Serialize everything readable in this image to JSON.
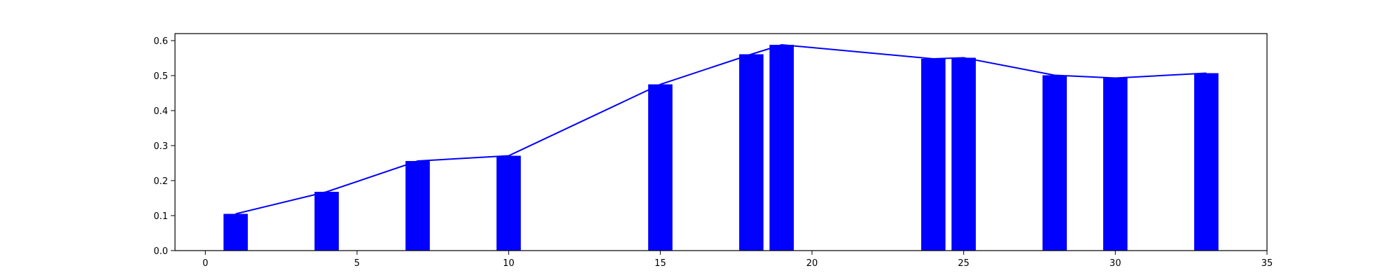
{
  "chart_data": {
    "type": "bar",
    "title": "",
    "xlabel": "",
    "ylabel": "",
    "xlim": [
      -1,
      35
    ],
    "ylim": [
      0,
      0.62
    ],
    "x_ticks": [
      0,
      5,
      10,
      15,
      20,
      25,
      30,
      35
    ],
    "y_ticks": [
      0.0,
      0.1,
      0.2,
      0.3,
      0.4,
      0.5,
      0.6
    ],
    "x_tick_labels": [
      "0",
      "5",
      "10",
      "15",
      "20",
      "25",
      "30",
      "35"
    ],
    "y_tick_labels": [
      "0.0",
      "0.1",
      "0.2",
      "0.3",
      "0.4",
      "0.5",
      "0.6"
    ],
    "bar_width": 0.8,
    "grid": false,
    "bar_color": "#0000ff",
    "line_color": "#0000ff",
    "series": [
      {
        "type": "bar",
        "x": [
          1,
          4,
          7,
          10,
          15,
          18,
          19,
          24,
          25,
          28,
          30,
          33
        ],
        "values": [
          0.105,
          0.168,
          0.256,
          0.271,
          0.475,
          0.561,
          0.588,
          0.548,
          0.551,
          0.501,
          0.493,
          0.507
        ]
      },
      {
        "type": "line",
        "x": [
          1,
          4,
          7,
          10,
          15,
          18,
          19,
          24,
          25,
          28,
          30,
          33
        ],
        "values": [
          0.105,
          0.168,
          0.256,
          0.271,
          0.475,
          0.561,
          0.588,
          0.548,
          0.551,
          0.501,
          0.493,
          0.507
        ]
      }
    ]
  }
}
